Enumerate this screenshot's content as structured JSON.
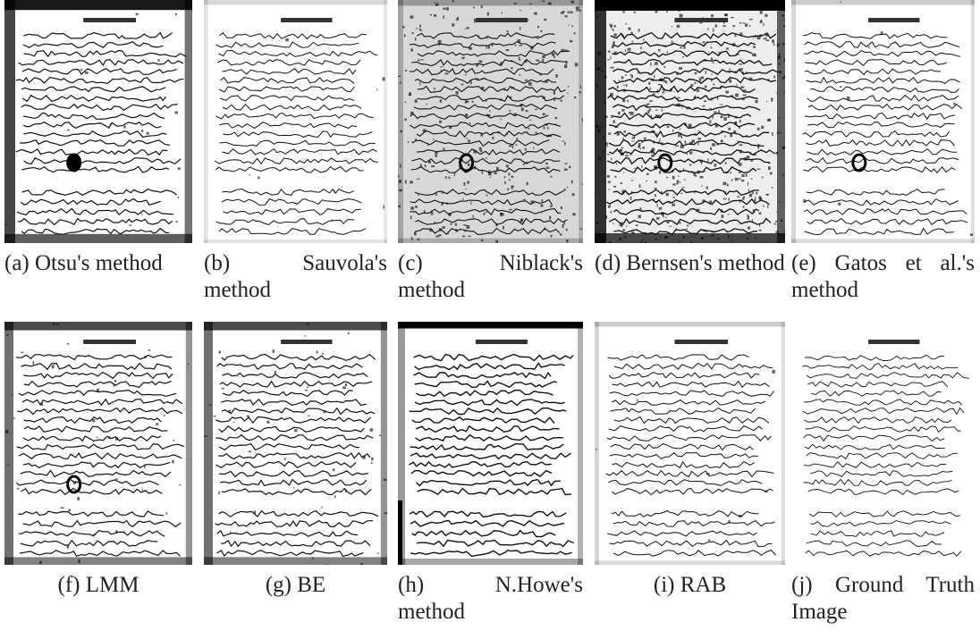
{
  "figure": {
    "panels": [
      {
        "caption": "(a) Otsu's method"
      },
      {
        "caption": "(b) Sauvola's method"
      },
      {
        "caption": "(c) Niblack's method"
      },
      {
        "caption": "(d) Bernsen's method"
      },
      {
        "caption": "(e) Gatos et al.'s method"
      },
      {
        "caption": "(f) LMM"
      },
      {
        "caption": "(g) BE"
      },
      {
        "caption": "(h) N.Howe's method"
      },
      {
        "caption": "(i) RAB"
      },
      {
        "caption": "(j) Ground Truth Image"
      }
    ]
  }
}
